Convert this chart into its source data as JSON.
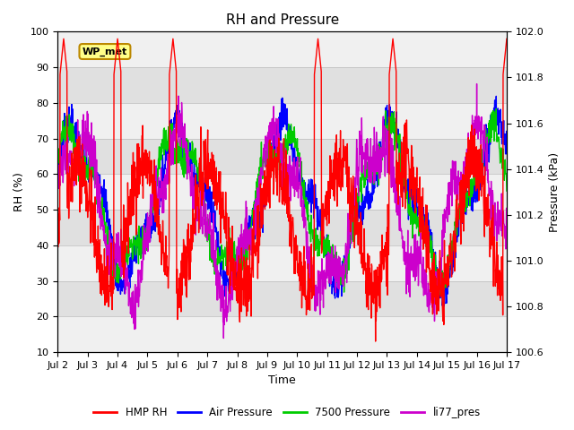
{
  "title": "RH and Pressure",
  "xlabel": "Time",
  "ylabel_left": "RH (%)",
  "ylabel_right": "Pressure (kPa)",
  "ylim_left": [
    10,
    100
  ],
  "ylim_right": [
    100.6,
    102.0
  ],
  "annotation": "WP_met",
  "x_tick_labels": [
    "Jul 2",
    "Jul 3",
    "Jul 4",
    "Jul 5",
    "Jul 6",
    "Jul 7",
    "Jul 8",
    "Jul 9",
    "Jul 10",
    "Jul 11",
    "Jul 12",
    "Jul 13",
    "Jul 14",
    "Jul 15",
    "Jul 16",
    "Jul 17"
  ],
  "legend_labels": [
    "HMP RH",
    "Air Pressure",
    "7500 Pressure",
    "li77_pres"
  ],
  "line_colors": [
    "#ff0000",
    "#0000ff",
    "#00cc00",
    "#cc00cc"
  ],
  "background_color": "#ffffff",
  "plot_bg_color": "#e0e0e0",
  "stripe_color": "#f0f0f0",
  "title_fontsize": 11,
  "axis_fontsize": 9,
  "tick_fontsize": 8,
  "figsize": [
    6.4,
    4.8
  ],
  "dpi": 100
}
